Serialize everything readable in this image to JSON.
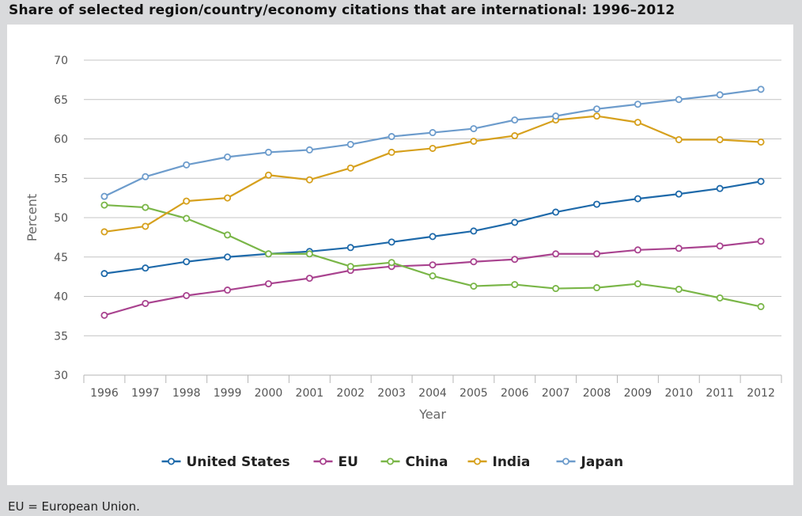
{
  "title": "Share of selected region/country/economy citations that are international: 1996–2012",
  "footnote": "EU = European Union.",
  "chart_data": {
    "type": "line",
    "title": "Share of selected region/country/economy citations that are international: 1996–2012",
    "xlabel": "Year",
    "ylabel": "Percent",
    "ylim": [
      30,
      70
    ],
    "yticks": [
      "30",
      "35",
      "40",
      "45",
      "50",
      "55",
      "60",
      "65",
      "70"
    ],
    "grid": true,
    "legend_position": "bottom",
    "categories": [
      "1996",
      "1997",
      "1998",
      "1999",
      "2000",
      "2001",
      "2002",
      "2003",
      "2004",
      "2005",
      "2006",
      "2007",
      "2008",
      "2009",
      "2010",
      "2011",
      "2012"
    ],
    "series": [
      {
        "name": "United States",
        "color": "#1f6aaa",
        "values": [
          42.9,
          43.6,
          44.4,
          45.0,
          45.4,
          45.7,
          46.2,
          46.9,
          47.6,
          48.3,
          49.4,
          50.7,
          51.7,
          52.4,
          53.0,
          53.7,
          54.6
        ]
      },
      {
        "name": "EU",
        "color": "#a9438f",
        "values": [
          37.6,
          39.1,
          40.1,
          40.8,
          41.6,
          42.3,
          43.3,
          43.8,
          44.0,
          44.4,
          44.7,
          45.4,
          45.4,
          45.9,
          46.1,
          46.4,
          47.0
        ]
      },
      {
        "name": "China",
        "color": "#7ab648",
        "values": [
          51.6,
          51.3,
          49.9,
          47.8,
          45.4,
          45.4,
          43.8,
          44.3,
          42.6,
          41.3,
          41.5,
          41.0,
          41.1,
          41.6,
          40.9,
          39.8,
          38.7
        ]
      },
      {
        "name": "India",
        "color": "#d6a01d",
        "values": [
          48.2,
          48.9,
          52.1,
          52.5,
          55.4,
          54.8,
          56.3,
          58.3,
          58.8,
          59.7,
          60.4,
          62.4,
          62.9,
          62.1,
          59.9,
          59.9,
          59.6
        ]
      },
      {
        "name": "Japan",
        "color": "#6d9ccc",
        "values": [
          52.7,
          55.2,
          56.7,
          57.7,
          58.3,
          58.6,
          59.3,
          60.3,
          60.8,
          61.3,
          62.4,
          62.9,
          63.8,
          64.4,
          65.0,
          65.6,
          66.3
        ]
      }
    ]
  }
}
